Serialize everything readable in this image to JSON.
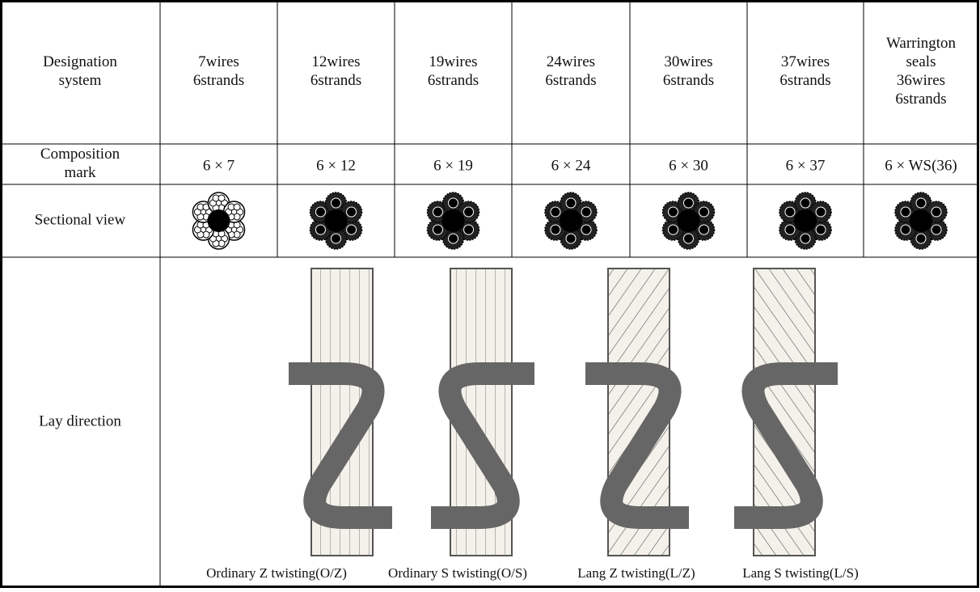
{
  "table": {
    "header": [
      [
        "Designation",
        "system"
      ],
      [
        "7wires",
        "6strands"
      ],
      [
        "12wires",
        "6strands"
      ],
      [
        "19wires",
        "6strands"
      ],
      [
        "24wires",
        "6strands"
      ],
      [
        "30wires",
        "6strands"
      ],
      [
        "37wires",
        "6strands"
      ],
      [
        "Warrington",
        "seals",
        "36wires",
        "6strands"
      ]
    ],
    "composition": [
      [
        "Composition",
        "mark"
      ],
      "6 × 7",
      "6 × 12",
      "6 × 19",
      "6 × 24",
      "6 × 30",
      "6 × 37",
      "6 × WS(36)"
    ],
    "sectional_label": "Sectional view",
    "lay_label": "Lay direction",
    "lay_captions": [
      "Ordinary Z twisting(O/Z)",
      "Ordinary S twisting(O/S)",
      "Lang Z twisting(L/Z)",
      "Lang S twisting(L/S)"
    ]
  }
}
